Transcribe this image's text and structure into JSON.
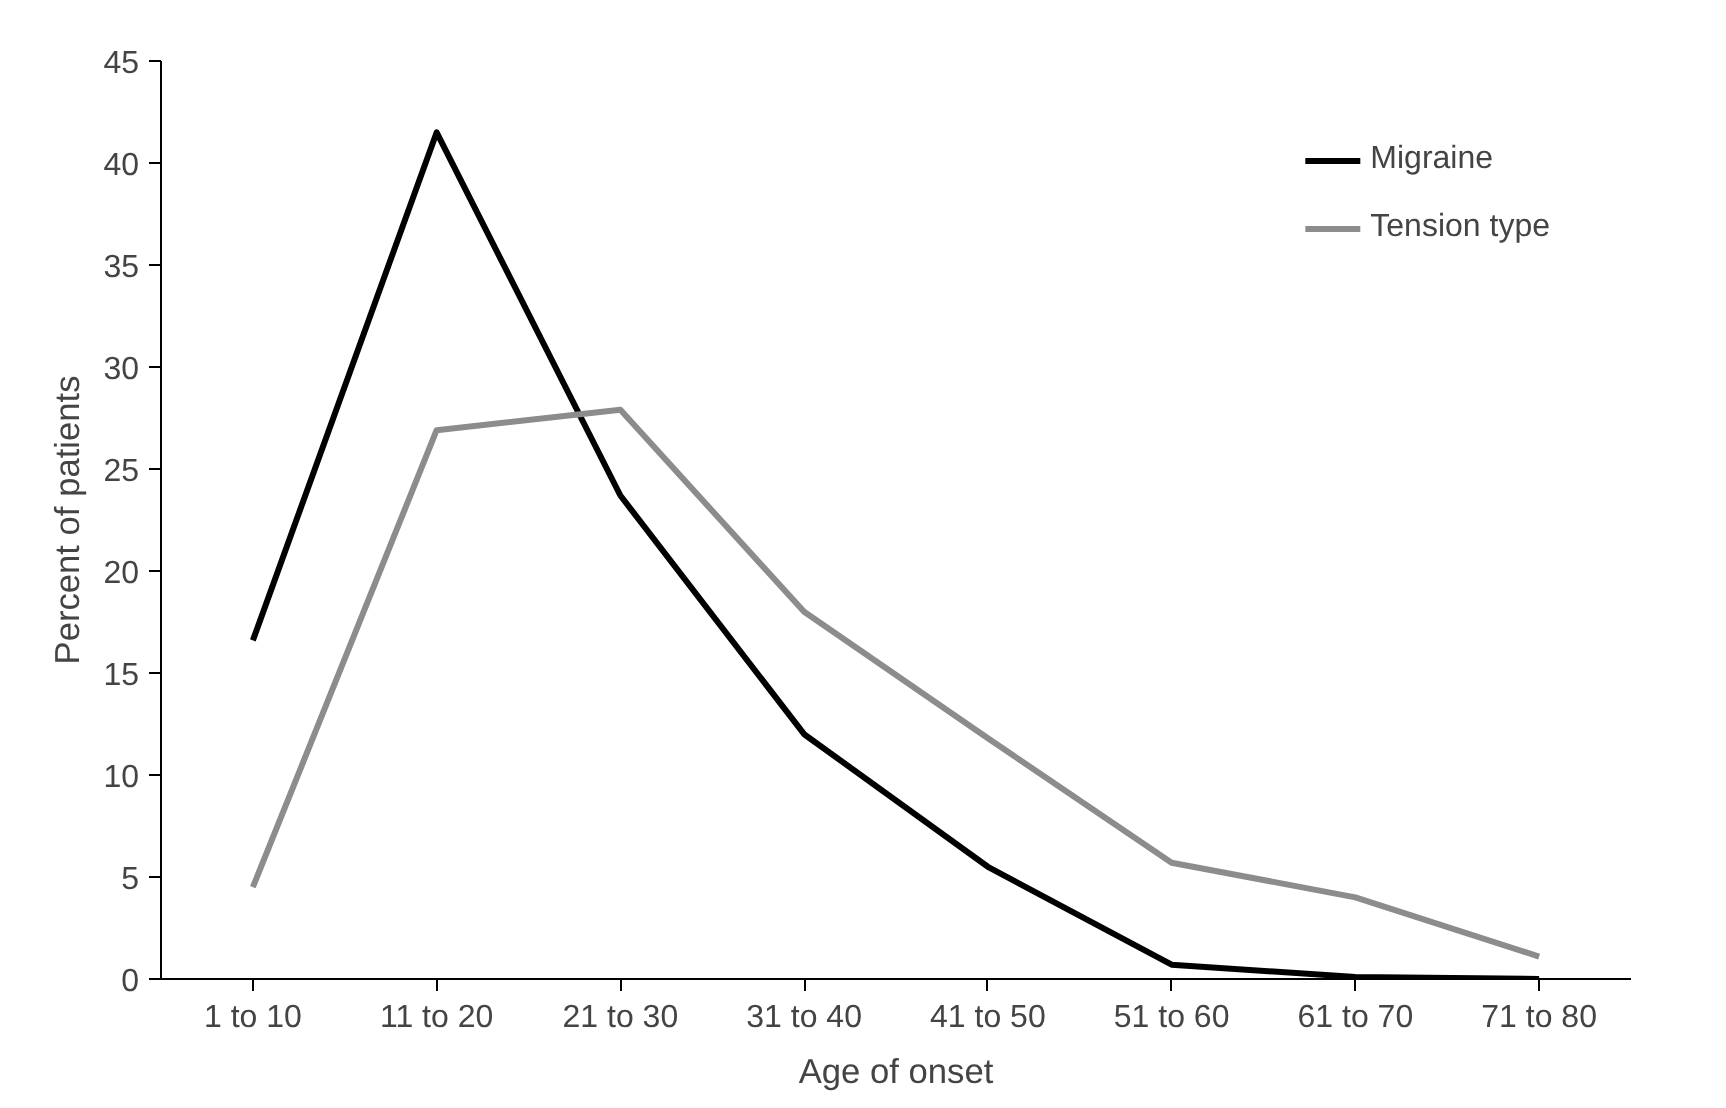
{
  "chart_data": {
    "type": "line",
    "xlabel": "Age of onset",
    "ylabel": "Percent of patients",
    "categories": [
      "1 to 10",
      "11 to 20",
      "21 to 30",
      "31 to 40",
      "41 to 50",
      "51 to 60",
      "61 to 70",
      "71 to 80"
    ],
    "series": [
      {
        "name": "Migraine",
        "color": "#000000",
        "values": [
          16.6,
          41.5,
          23.7,
          12.0,
          5.5,
          0.7,
          0.1,
          0
        ]
      },
      {
        "name": "Tension type",
        "color": "#8c8c8c",
        "values": [
          4.5,
          26.9,
          27.9,
          18.0,
          11.8,
          5.7,
          4.0,
          1.1
        ]
      }
    ],
    "ylim": [
      0,
      45
    ],
    "yticks": [
      0,
      5,
      10,
      15,
      20,
      25,
      30,
      35,
      40,
      45
    ],
    "grid": false,
    "legend": "top right",
    "marker": "none",
    "line_style": "solid"
  }
}
